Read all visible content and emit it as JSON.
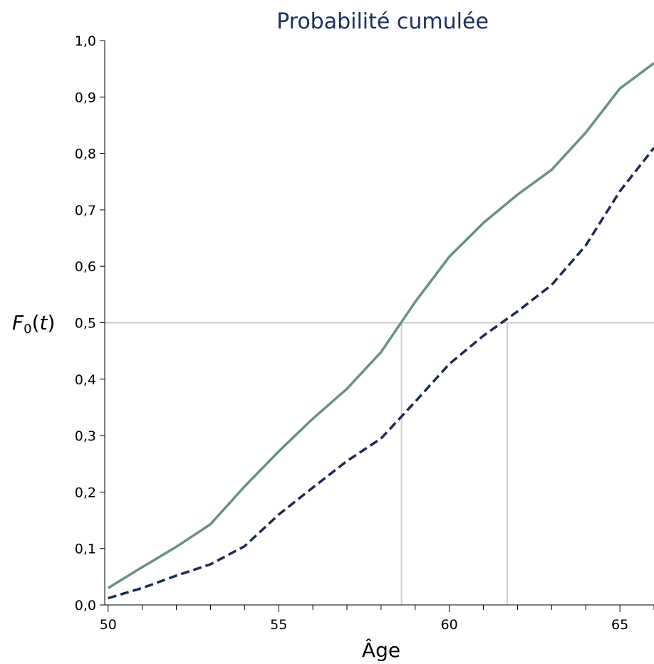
{
  "chart_data": {
    "type": "line",
    "title": "Probabilité cumulée",
    "xlabel": "Âge",
    "ylabel": {
      "main": "F",
      "subscript": "0",
      "suffix_open": "(",
      "arg": "t",
      "suffix_close": ")"
    },
    "xlim": [
      49.9,
      66.0
    ],
    "ylim": [
      0.0,
      1.0
    ],
    "x_ticks_major": [
      50,
      55,
      60,
      65
    ],
    "x_tick_labels": [
      "50",
      "55",
      "60",
      "65"
    ],
    "x_ticks_minor": [
      51,
      52,
      53,
      54,
      56,
      57,
      58,
      59,
      61,
      62,
      63,
      64,
      66
    ],
    "y_ticks": [
      0.0,
      0.1,
      0.2,
      0.3,
      0.4,
      0.5,
      0.6,
      0.7,
      0.8,
      0.9,
      1.0
    ],
    "y_tick_labels": [
      "0,0",
      "0,1",
      "0,2",
      "0,3",
      "0,4",
      "0,5",
      "0,6",
      "0,7",
      "0,8",
      "0,9",
      "1,0"
    ],
    "reference_lines": {
      "horizontal_y": 0.5,
      "vertical_x": [
        58.6,
        61.7
      ],
      "color": "#cccccc"
    },
    "series": [
      {
        "style": "solid",
        "color": "#6b9080",
        "x": [
          50,
          51,
          52,
          53,
          54,
          55,
          56,
          57,
          58,
          59,
          60,
          61,
          62,
          63,
          64,
          65,
          66
        ],
        "y": [
          0.03,
          0.067,
          0.103,
          0.143,
          0.21,
          0.272,
          0.33,
          0.383,
          0.448,
          0.537,
          0.617,
          0.677,
          0.727,
          0.771,
          0.837,
          0.915,
          0.96
        ]
      },
      {
        "style": "dashed",
        "color": "#1f2a4f",
        "x": [
          50,
          51,
          52,
          53,
          54,
          55,
          56,
          57,
          58,
          59,
          60,
          61,
          62,
          63,
          64,
          65,
          66
        ],
        "y": [
          0.012,
          0.03,
          0.052,
          0.072,
          0.104,
          0.16,
          0.208,
          0.255,
          0.295,
          0.36,
          0.427,
          0.477,
          0.52,
          0.567,
          0.637,
          0.733,
          0.81
        ]
      }
    ]
  }
}
